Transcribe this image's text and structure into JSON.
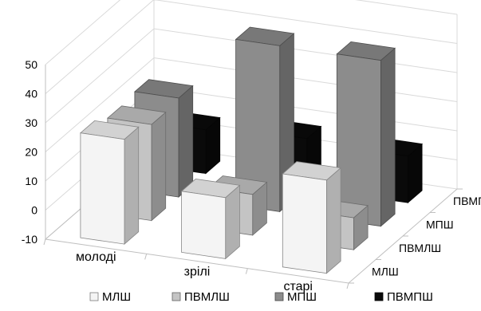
{
  "chart_data": {
    "type": "bar",
    "subtype": "3d-column",
    "title": "",
    "xlabel": "",
    "ylabel": "",
    "ylim": [
      -10,
      50
    ],
    "yticks": [
      -10,
      0,
      10,
      20,
      30,
      40,
      50
    ],
    "grid": true,
    "legend_position": "bottom",
    "categories": [
      "молоді",
      "зрілі",
      "старі"
    ],
    "depth_categories": [
      "МЛШ",
      "ПВМЛШ",
      "МПШ",
      "ПВМПШ"
    ],
    "series": [
      {
        "name": "МЛШ",
        "color": "#f4f4f4",
        "values": [
          26,
          11,
          22
        ]
      },
      {
        "name": "ПВМЛШ",
        "color": "#c4c4c4",
        "values": [
          23,
          4,
          1
        ]
      },
      {
        "name": "МПШ",
        "color": "#8c8c8c",
        "values": [
          24,
          47,
          47
        ]
      },
      {
        "name": "ПВМПШ",
        "color": "#0a0a0a",
        "values": [
          5,
          7,
          6
        ]
      }
    ]
  }
}
